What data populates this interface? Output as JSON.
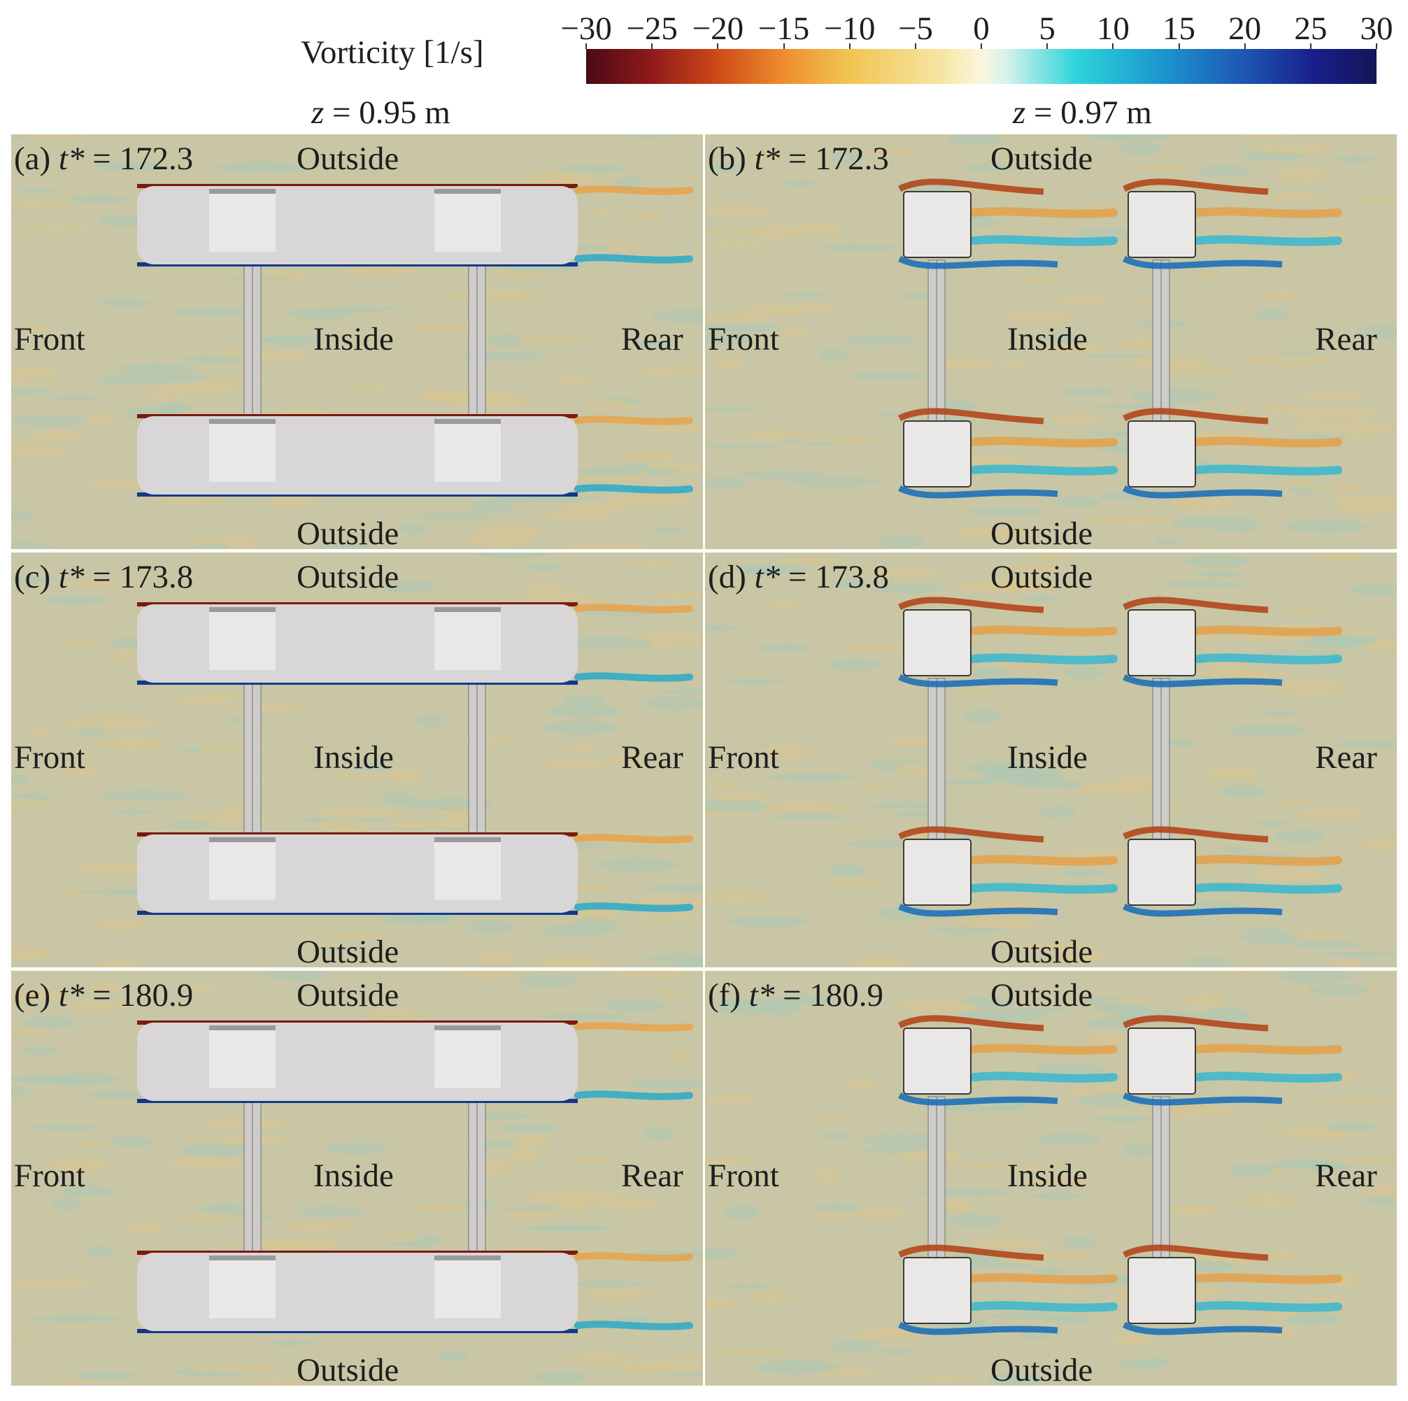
{
  "colorbar": {
    "title": "Vorticity [1/s]",
    "ticks": [
      "−30",
      "−25",
      "−20",
      "−15",
      "−10",
      "−5",
      "0",
      "5",
      "10",
      "15",
      "20",
      "25",
      "30"
    ],
    "min": -30,
    "max": 30,
    "colors": [
      "#4a0a14",
      "#cf4a17",
      "#f1c452",
      "#fbf6de",
      "#2ed4da",
      "#1e58b5",
      "#141556"
    ]
  },
  "headers": {
    "left": {
      "var": "z",
      "rest": " = 0.95 m"
    },
    "right": {
      "var": "z",
      "rest": " = 0.97 m"
    }
  },
  "regions": {
    "outside": "Outside",
    "inside": "Inside",
    "front": "Front",
    "rear": "Rear"
  },
  "panels": [
    {
      "tag": "(a) ",
      "var": "t*",
      "rest": " = 172.3",
      "plane": "z = 0.95 m"
    },
    {
      "tag": "(b) ",
      "var": "t*",
      "rest": " = 172.3",
      "plane": "z = 0.97 m"
    },
    {
      "tag": "(c) ",
      "var": "t*",
      "rest": " = 173.8",
      "plane": "z = 0.95 m"
    },
    {
      "tag": "(d) ",
      "var": "t*",
      "rest": " = 173.8",
      "plane": "z = 0.97 m"
    },
    {
      "tag": "(e) ",
      "var": "t*",
      "rest": " = 180.9",
      "plane": "z = 0.95 m"
    },
    {
      "tag": "(f) ",
      "var": "t*",
      "rest": " = 180.9",
      "plane": "z = 0.97 m"
    }
  ]
}
